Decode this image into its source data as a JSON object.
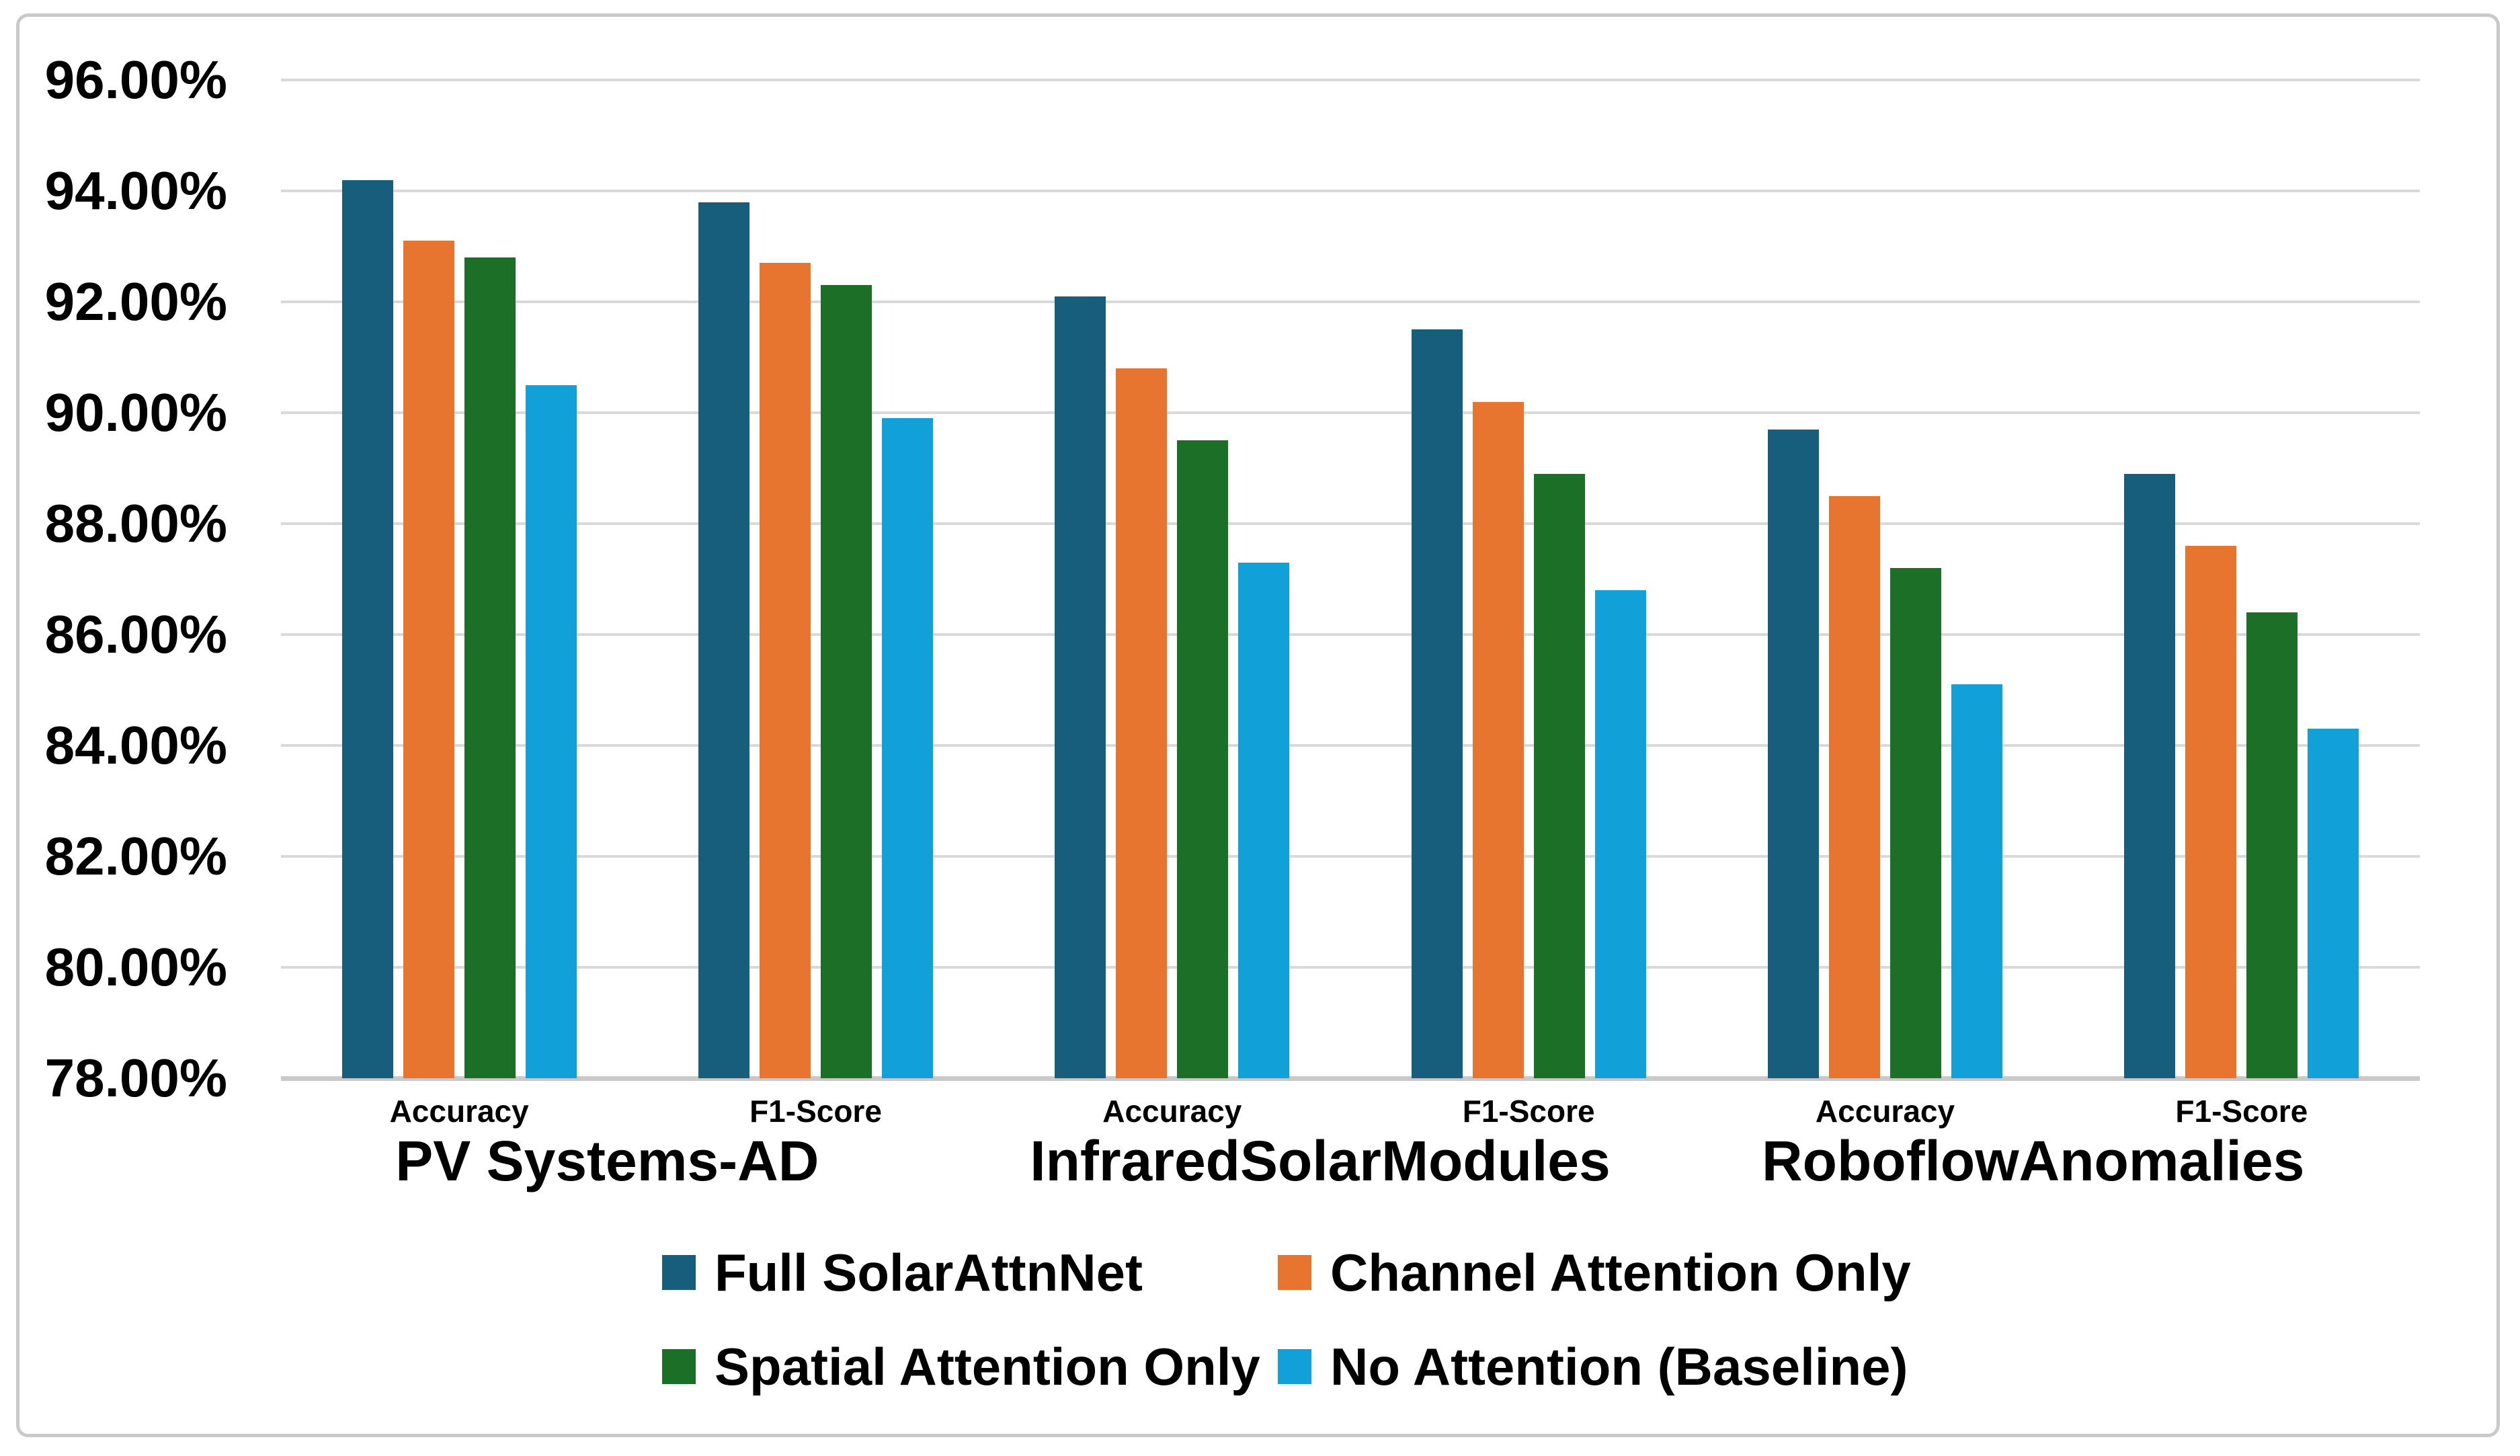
{
  "figure": {
    "background_color": "#FFFFFF",
    "border_color": "#C9C9C9",
    "gridline_color": "#D9D9D9",
    "axis_line_color": "#C9C9C9",
    "text_color": "#000000"
  },
  "chart_data": {
    "type": "bar",
    "title": "",
    "xlabel": "",
    "ylabel": "",
    "y_axis": {
      "min": 78,
      "max": 96,
      "step": 2,
      "tick_labels": [
        "96.00%",
        "94.00%",
        "92.00%",
        "90.00%",
        "88.00%",
        "86.00%",
        "84.00%",
        "82.00%",
        "80.00%",
        "78.00%"
      ],
      "grid": true
    },
    "categories": [
      "Accuracy",
      "F1-Score",
      "Accuracy",
      "F1-Score",
      "Accuracy",
      "F1-Score"
    ],
    "category_groups": [
      {
        "label": "PV Systems-AD",
        "span": [
          0,
          1
        ]
      },
      {
        "label": "InfraredSolarModules",
        "span": [
          2,
          3
        ]
      },
      {
        "label": "RoboflowAnomalies",
        "span": [
          4,
          5
        ]
      }
    ],
    "series": [
      {
        "name": "Full SolarAttnNet",
        "color": "#175E7D",
        "values": [
          94.2,
          93.8,
          92.1,
          91.5,
          89.7,
          88.9
        ]
      },
      {
        "name": "Channel Attention Only",
        "color": "#E7742F",
        "values": [
          93.1,
          92.7,
          90.8,
          90.2,
          88.5,
          87.6
        ]
      },
      {
        "name": "Spatial Attention Only",
        "color": "#1C6F26",
        "values": [
          92.8,
          92.3,
          89.5,
          88.9,
          87.2,
          86.4
        ]
      },
      {
        "name": "No Attention (Baseline)",
        "color": "#12A0D8",
        "values": [
          90.5,
          89.9,
          87.3,
          86.8,
          85.1,
          84.3
        ]
      }
    ],
    "legend": {
      "position": "bottom",
      "rows": 2,
      "columns": 2,
      "entries": [
        "Full SolarAttnNet",
        "Channel Attention Only",
        "Spatial Attention Only",
        "No Attention (Baseline)"
      ]
    }
  }
}
